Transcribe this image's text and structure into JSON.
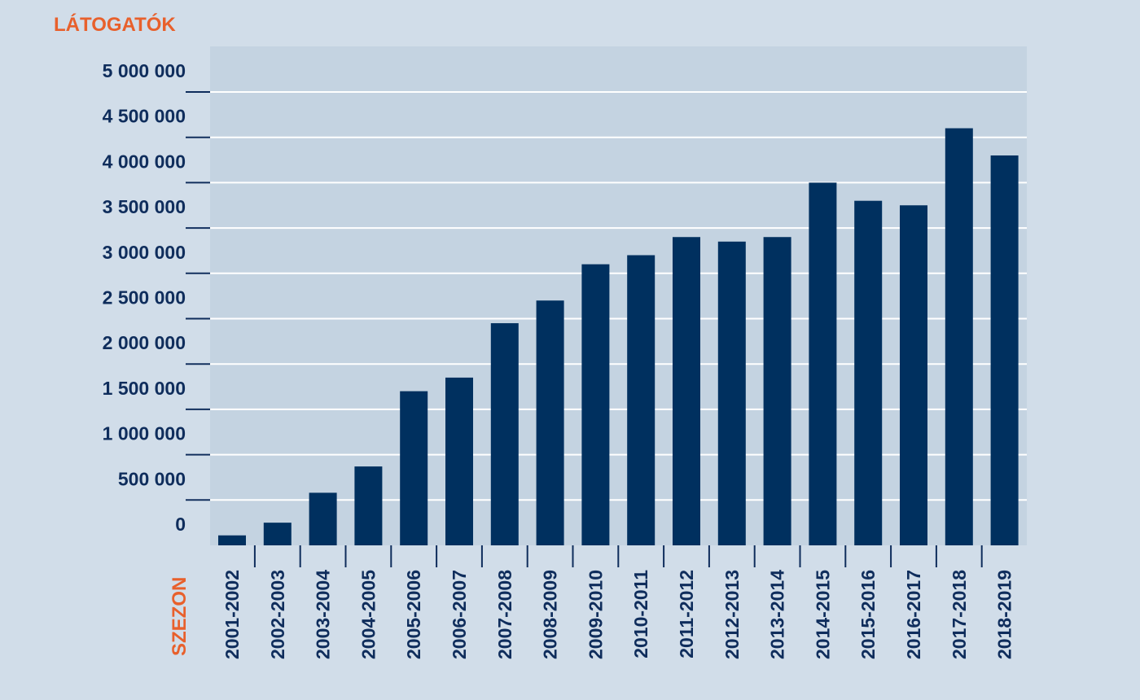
{
  "colors": {
    "background": "#d1dde9",
    "plot_background": "#c4d3e1",
    "bar": "#00305f",
    "gridline": "#ffffff",
    "axis_text": "#0f2d5c",
    "axis_title": "#e8602c"
  },
  "chart_data": {
    "type": "bar",
    "ylabel": "LÁTOGATÓK",
    "xlabel": "SZEZON",
    "ylim": [
      0,
      5000000
    ],
    "grid": true,
    "ytick_values": [
      0,
      500000,
      1000000,
      1500000,
      2000000,
      2500000,
      3000000,
      3500000,
      4000000,
      4500000,
      5000000
    ],
    "ytick_labels": [
      "0",
      "500 000",
      "1 000 000",
      "1 500 000",
      "2 000 000",
      "2 500 000",
      "3 000 000",
      "3 500 000",
      "4 000 000",
      "4 500 000",
      "5 000 000"
    ],
    "categories": [
      "2001-2002",
      "2002-2003",
      "2003-2004",
      "2004-2005",
      "2005-2006",
      "2006-2007",
      "2007-2008",
      "2008-2009",
      "2009-2010",
      "2010-2011",
      "2011-2012",
      "2012-2013",
      "2013-2014",
      "2014-2015",
      "2015-2016",
      "2016-2017",
      "2017-2018",
      "2018-2019"
    ],
    "values": [
      110000,
      250000,
      580000,
      870000,
      1700000,
      1850000,
      2450000,
      2700000,
      3100000,
      3200000,
      3400000,
      3350000,
      3400000,
      4000000,
      3800000,
      3750000,
      4600000,
      4300000
    ]
  }
}
